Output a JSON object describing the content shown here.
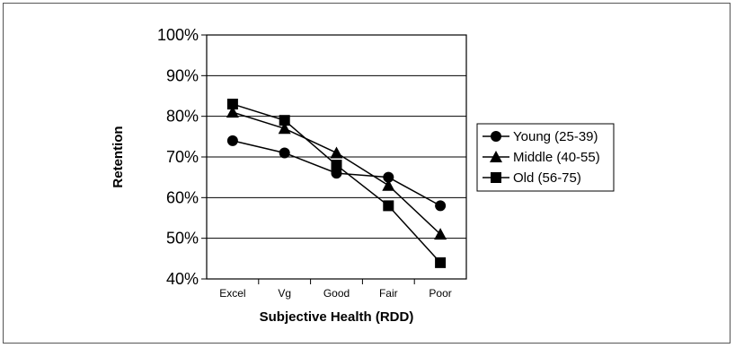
{
  "chart_data": {
    "type": "line",
    "categories": [
      "Excel",
      "Vg",
      "Good",
      "Fair",
      "Poor"
    ],
    "series": [
      {
        "name": "Young (25-39)",
        "marker": "circle",
        "values": [
          74,
          71,
          66,
          65,
          58
        ]
      },
      {
        "name": "Middle (40-55)",
        "marker": "triangle",
        "values": [
          81,
          77,
          71,
          63,
          51
        ]
      },
      {
        "name": "Old (56-75)",
        "marker": "square",
        "values": [
          83,
          79,
          68,
          58,
          44
        ]
      }
    ],
    "yticks": [
      "40%",
      "50%",
      "60%",
      "70%",
      "80%",
      "90%",
      "100%"
    ],
    "ylim": [
      40,
      100
    ],
    "xlabel": "Subjective Health (RDD)",
    "ylabel": "Retention",
    "grid": true,
    "legend_position": "right",
    "colors": {
      "line": "#000000",
      "marker": "#000000",
      "grid": "#000000"
    }
  }
}
